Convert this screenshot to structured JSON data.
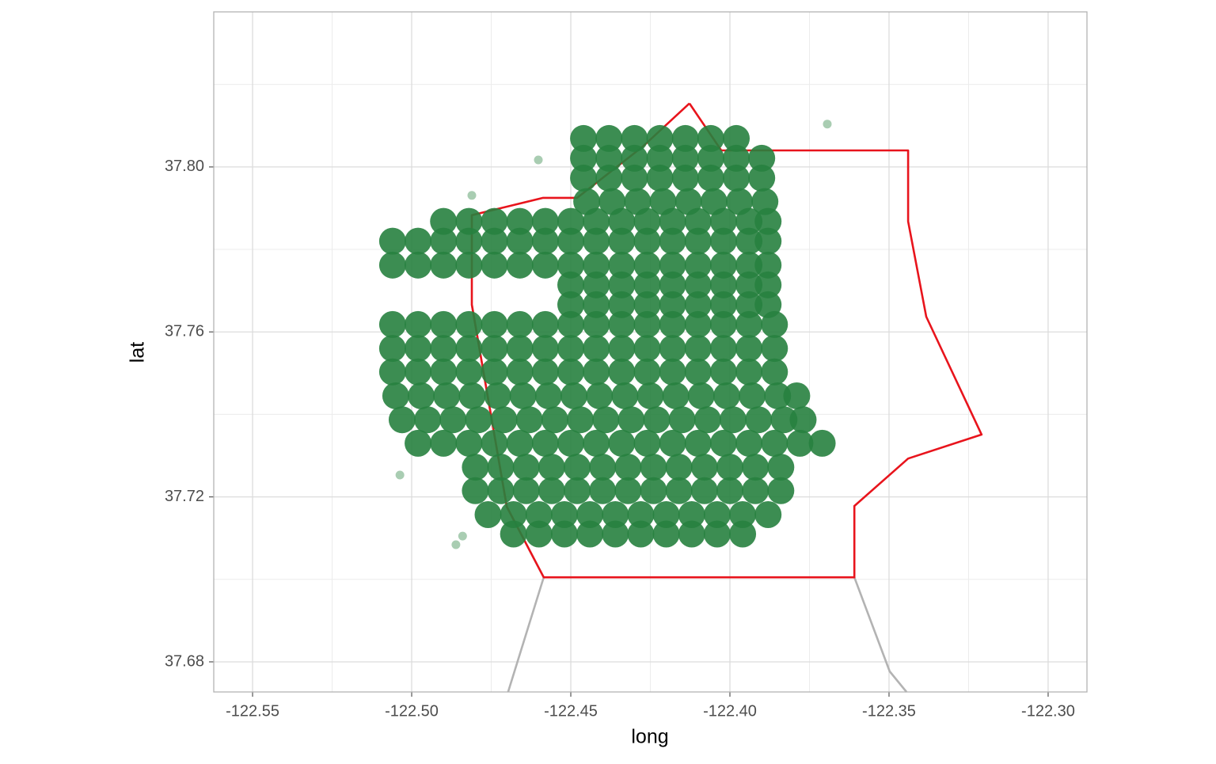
{
  "chart_data": {
    "type": "scatter",
    "x_label": "long",
    "y_label": "lat",
    "xlim": [
      -122.5622,
      -122.2878
    ],
    "ylim": [
      37.6727,
      37.8376
    ],
    "xticks": [
      -122.55,
      {
        "value": -122.5,
        "label": "-122.50"
      },
      -122.45,
      {
        "value": -122.4,
        "label": "-122.40"
      },
      -122.35,
      {
        "value": -122.3,
        "label": "-122.30"
      }
    ],
    "yticks": [
      37.68,
      37.72,
      37.76,
      {
        "value": 37.8,
        "label": "37.80"
      }
    ],
    "minor_xticks": [
      -122.525,
      -122.475,
      -122.425,
      -122.375,
      -122.325
    ],
    "minor_yticks": [
      37.7,
      37.74,
      37.78,
      37.82
    ],
    "grid": true,
    "point_color": "#27813f",
    "series": [
      {
        "x": [
          -122.446,
          -122.438,
          -122.43,
          -122.422,
          -122.414,
          -122.406,
          -122.398
        ],
        "y": [
          37.8069,
          37.8069,
          37.8069,
          37.8069,
          37.8069,
          37.8069,
          37.8069
        ]
      },
      {
        "x": [
          -122.446,
          -122.438,
          -122.43,
          -122.422,
          -122.414,
          -122.406,
          -122.398,
          -122.39
        ],
        "y": [
          37.8021,
          37.8021,
          37.8021,
          37.8021,
          37.8021,
          37.8021,
          37.8021,
          37.8021
        ]
      },
      {
        "x": [
          -122.446,
          -122.438,
          -122.43,
          -122.422,
          -122.414,
          -122.406,
          -122.398,
          -122.39
        ],
        "y": [
          37.7973,
          37.7973,
          37.7973,
          37.7973,
          37.7973,
          37.7973,
          37.7973,
          37.7973
        ]
      },
      {
        "x": [
          -122.445,
          -122.437,
          -122.429,
          -122.421,
          -122.413,
          -122.405,
          -122.397,
          -122.389
        ],
        "y": [
          37.7916,
          37.7916,
          37.7916,
          37.7916,
          37.7916,
          37.7916,
          37.7916,
          37.7916
        ]
      },
      {
        "x": [
          -122.49,
          -122.482,
          -122.474,
          -122.466,
          -122.458,
          -122.45,
          -122.442,
          -122.434,
          -122.426,
          -122.418,
          -122.41,
          -122.402,
          -122.394,
          -122.388
        ],
        "y": [
          37.7868,
          37.7868,
          37.7868,
          37.7868,
          37.7868,
          37.7868,
          37.7868,
          37.7868,
          37.7868,
          37.7868,
          37.7868,
          37.7868,
          37.7868,
          37.7868
        ]
      },
      {
        "x": [
          -122.506,
          -122.498,
          -122.49,
          -122.482,
          -122.474,
          -122.466,
          -122.458,
          -122.45,
          -122.442,
          -122.434,
          -122.426,
          -122.418,
          -122.41,
          -122.402,
          -122.394,
          -122.388
        ],
        "y": [
          37.782,
          37.782,
          37.782,
          37.782,
          37.782,
          37.782,
          37.782,
          37.782,
          37.782,
          37.782,
          37.782,
          37.782,
          37.782,
          37.782,
          37.782,
          37.782
        ]
      },
      {
        "x": [
          -122.506,
          -122.498,
          -122.49,
          -122.482,
          -122.474,
          -122.466,
          -122.458,
          -122.45,
          -122.442,
          -122.434,
          -122.426,
          -122.418,
          -122.41,
          -122.402,
          -122.394,
          -122.388
        ],
        "y": [
          37.7762,
          37.7762,
          37.7762,
          37.7762,
          37.7762,
          37.7762,
          37.7762,
          37.7762,
          37.7762,
          37.7762,
          37.7762,
          37.7762,
          37.7762,
          37.7762,
          37.7762,
          37.7762
        ]
      },
      {
        "x": [
          -122.45,
          -122.442,
          -122.434,
          -122.426,
          -122.418,
          -122.41,
          -122.402,
          -122.394,
          -122.388
        ],
        "y": [
          37.7714,
          37.7714,
          37.7714,
          37.7714,
          37.7714,
          37.7714,
          37.7714,
          37.7714,
          37.7714
        ]
      },
      {
        "x": [
          -122.45,
          -122.442,
          -122.434,
          -122.426,
          -122.418,
          -122.41,
          -122.402,
          -122.394,
          -122.388
        ],
        "y": [
          37.7666,
          37.7666,
          37.7666,
          37.7666,
          37.7666,
          37.7666,
          37.7666,
          37.7666,
          37.7666
        ]
      },
      {
        "x": [
          -122.506,
          -122.498,
          -122.49,
          -122.482,
          -122.474,
          -122.466,
          -122.458,
          -122.45,
          -122.442,
          -122.434,
          -122.426,
          -122.418,
          -122.41,
          -122.402,
          -122.394,
          -122.386
        ],
        "y": [
          37.7618,
          37.7618,
          37.7618,
          37.7618,
          37.7618,
          37.7618,
          37.7618,
          37.7618,
          37.7618,
          37.7618,
          37.7618,
          37.7618,
          37.7618,
          37.7618,
          37.7618,
          37.7618
        ]
      },
      {
        "x": [
          -122.506,
          -122.498,
          -122.49,
          -122.482,
          -122.474,
          -122.466,
          -122.458,
          -122.45,
          -122.442,
          -122.434,
          -122.426,
          -122.418,
          -122.41,
          -122.402,
          -122.394,
          -122.386
        ],
        "y": [
          37.756,
          37.756,
          37.756,
          37.756,
          37.756,
          37.756,
          37.756,
          37.756,
          37.756,
          37.756,
          37.756,
          37.756,
          37.756,
          37.756,
          37.756,
          37.756
        ]
      },
      {
        "x": [
          -122.506,
          -122.498,
          -122.49,
          -122.482,
          -122.474,
          -122.466,
          -122.458,
          -122.45,
          -122.442,
          -122.434,
          -122.426,
          -122.418,
          -122.41,
          -122.402,
          -122.394,
          -122.386
        ],
        "y": [
          37.7503,
          37.7503,
          37.7503,
          37.7503,
          37.7503,
          37.7503,
          37.7503,
          37.7503,
          37.7503,
          37.7503,
          37.7503,
          37.7503,
          37.7503,
          37.7503,
          37.7503,
          37.7503
        ]
      },
      {
        "x": [
          -122.505,
          -122.497,
          -122.489,
          -122.481,
          -122.473,
          -122.465,
          -122.457,
          -122.449,
          -122.441,
          -122.433,
          -122.425,
          -122.417,
          -122.409,
          -122.401,
          -122.393,
          -122.385,
          -122.379
        ],
        "y": [
          37.7445,
          37.7445,
          37.7445,
          37.7445,
          37.7445,
          37.7445,
          37.7445,
          37.7445,
          37.7445,
          37.7445,
          37.7445,
          37.7445,
          37.7445,
          37.7445,
          37.7445,
          37.7445,
          37.7445
        ]
      },
      {
        "x": [
          -122.503,
          -122.495,
          -122.487,
          -122.479,
          -122.471,
          -122.463,
          -122.455,
          -122.447,
          -122.439,
          -122.431,
          -122.423,
          -122.415,
          -122.407,
          -122.399,
          -122.391,
          -122.383,
          -122.377
        ],
        "y": [
          37.7387,
          37.7387,
          37.7387,
          37.7387,
          37.7387,
          37.7387,
          37.7387,
          37.7387,
          37.7387,
          37.7387,
          37.7387,
          37.7387,
          37.7387,
          37.7387,
          37.7387,
          37.7387,
          37.7387
        ]
      },
      {
        "x": [
          -122.498,
          -122.49,
          -122.482,
          -122.474,
          -122.466,
          -122.458,
          -122.45,
          -122.442,
          -122.434,
          -122.426,
          -122.418,
          -122.41,
          -122.402,
          -122.394,
          -122.386,
          -122.378,
          -122.371
        ],
        "y": [
          37.733,
          37.733,
          37.733,
          37.733,
          37.733,
          37.733,
          37.733,
          37.733,
          37.733,
          37.733,
          37.733,
          37.733,
          37.733,
          37.733,
          37.733,
          37.733,
          37.733
        ]
      },
      {
        "x": [
          -122.48,
          -122.472,
          -122.464,
          -122.456,
          -122.448,
          -122.44,
          -122.432,
          -122.424,
          -122.416,
          -122.408,
          -122.4,
          -122.392,
          -122.384
        ],
        "y": [
          37.7272,
          37.7272,
          37.7272,
          37.7272,
          37.7272,
          37.7272,
          37.7272,
          37.7272,
          37.7272,
          37.7272,
          37.7272,
          37.7272,
          37.7272
        ]
      },
      {
        "x": [
          -122.48,
          -122.472,
          -122.464,
          -122.456,
          -122.448,
          -122.44,
          -122.432,
          -122.424,
          -122.416,
          -122.408,
          -122.4,
          -122.392,
          -122.384
        ],
        "y": [
          37.7215,
          37.7215,
          37.7215,
          37.7215,
          37.7215,
          37.7215,
          37.7215,
          37.7215,
          37.7215,
          37.7215,
          37.7215,
          37.7215,
          37.7215
        ]
      },
      {
        "x": [
          -122.476,
          -122.468,
          -122.46,
          -122.452,
          -122.444,
          -122.436,
          -122.428,
          -122.42,
          -122.412,
          -122.404,
          -122.396,
          -122.388
        ],
        "y": [
          37.7157,
          37.7157,
          37.7157,
          37.7157,
          37.7157,
          37.7157,
          37.7157,
          37.7157,
          37.7157,
          37.7157,
          37.7157,
          37.7157
        ]
      },
      {
        "x": [
          -122.468,
          -122.46,
          -122.452,
          -122.444,
          -122.436,
          -122.428,
          -122.42,
          -122.412,
          -122.404,
          -122.396
        ],
        "y": [
          37.711,
          37.711,
          37.711,
          37.711,
          37.711,
          37.711,
          37.711,
          37.711,
          37.711,
          37.711
        ]
      },
      {
        "x": [
          -122.4602,
          -122.3694,
          -122.4811,
          -122.5037,
          -122.4861,
          -122.484
        ],
        "y": [
          37.8017,
          37.8104,
          37.7931,
          37.7253,
          37.7084,
          37.7105
        ]
      }
    ],
    "lines": [
      {
        "color": "#b3b3b3",
        "x": [
          -122.4811,
          -122.4701,
          -122.4585,
          -122.4697,
          null,
          -122.3609,
          -122.3498,
          -122.3445
        ],
        "y": [
          37.7666,
          37.7176,
          37.7005,
          37.6727,
          null,
          37.7005,
          37.6777,
          37.6727
        ]
      },
      {
        "color": "#e8141c",
        "x": [
          -122.4127,
          -122.4027,
          -122.344,
          -122.344,
          -122.3383,
          -122.3209,
          -122.344,
          -122.3609,
          -122.3609,
          -122.4585,
          -122.4701,
          -122.4811,
          -122.4811,
          -122.4587,
          -122.448,
          -122.4276,
          -122.4127
        ],
        "y": [
          37.8154,
          37.804,
          37.804,
          37.7868,
          37.7637,
          37.7351,
          37.7293,
          37.7178,
          37.7005,
          37.7005,
          37.7176,
          37.7666,
          37.7883,
          37.7925,
          37.7925,
          37.8048,
          37.8154
        ]
      }
    ]
  }
}
